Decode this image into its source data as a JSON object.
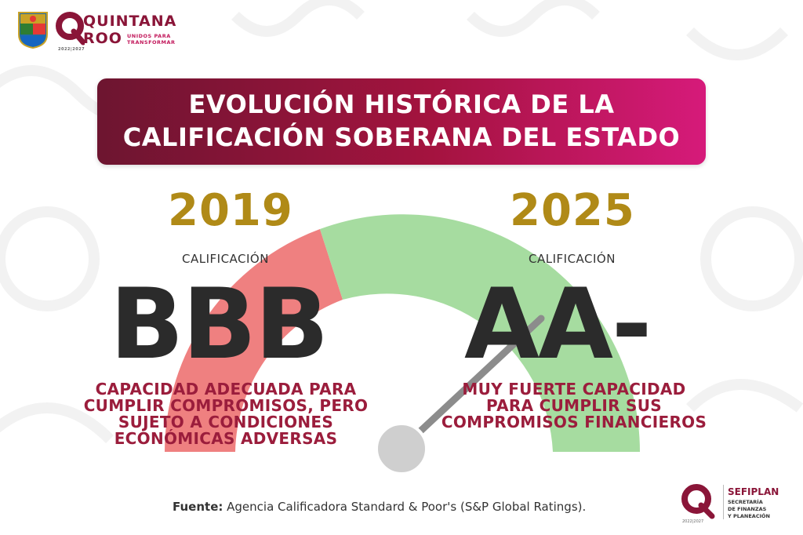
{
  "header": {
    "logo_line1": "QUINTANA",
    "logo_line2": "ROO",
    "logo_tag1": "UNIDOS PARA",
    "logo_tag2": "TRANSFORMAR",
    "logo_years": "2022|2027"
  },
  "title": {
    "line1": "EVOLUCIÓN HISTÓRICA DE LA",
    "line2": "CALIFICACIÓN SOBERANA DEL ESTADO"
  },
  "left": {
    "year": "2019",
    "label": "CALIFICACIÓN",
    "rating": "BBB",
    "desc": [
      "CAPACIDAD ADECUADA PARA",
      "CUMPLIR COMPROMISOS, PERO",
      "SUJETO A CONDICIONES",
      "ECONÓMICAS ADVERSAS"
    ]
  },
  "right": {
    "year": "2025",
    "label": "CALIFICACIÓN",
    "rating": "AA-",
    "desc": [
      "MUY FUERTE CAPACIDAD",
      "PARA CUMPLIR SUS",
      "COMPROMISOS FINANCIEROS"
    ]
  },
  "footer": {
    "source_label": "Fuente:",
    "source_text": " Agencia Calificadora Standard & Poor's (S&P Global Ratings).",
    "sefiplan_name": "SEFIPLAN",
    "sefiplan_l1": "SECRETARÍA",
    "sefiplan_l2": "DE FINANZAS",
    "sefiplan_l3": "Y PLANEACIÓN",
    "sefiplan_years": "2022|2027"
  },
  "colors": {
    "brand": "#8a1538",
    "gold": "#b08a17",
    "gauge_red": "#ef8080",
    "gauge_green": "#a6dca0",
    "needle": "#8c8c8c"
  }
}
